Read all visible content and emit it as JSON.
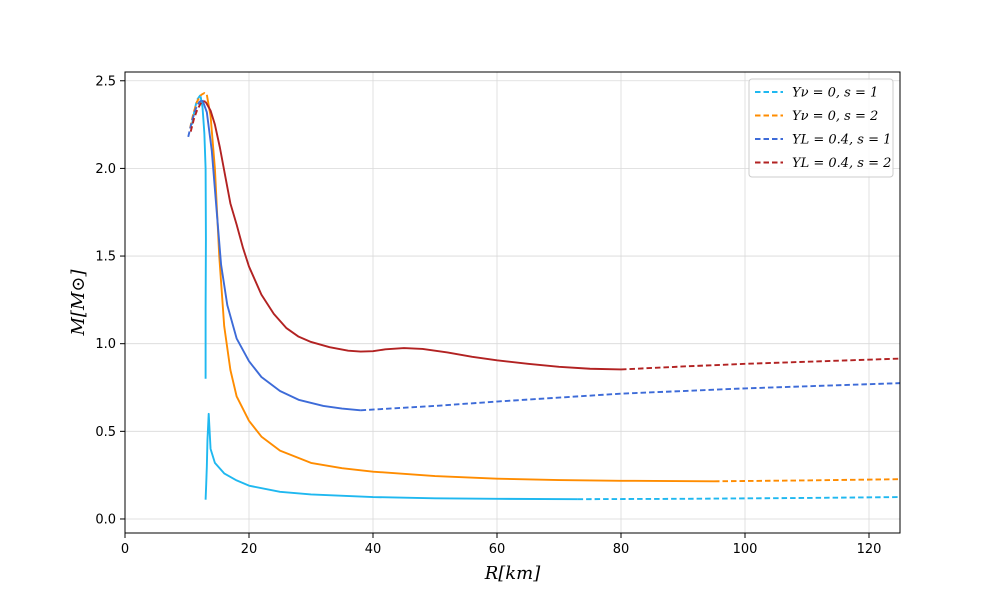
{
  "chart_data": {
    "type": "line",
    "xlabel": "R[km]",
    "ylabel": "M[M⊙]",
    "xlim": [
      0,
      125
    ],
    "ylim": [
      -0.08,
      2.55
    ],
    "xticks": [
      0,
      20,
      40,
      60,
      80,
      100,
      120
    ],
    "yticks": [
      0.0,
      0.5,
      1.0,
      1.5,
      2.0,
      2.5
    ],
    "grid": true,
    "legend_position": "top-right",
    "series": [
      {
        "name": "Yν = 0, s = 1",
        "color": "#1fb8f0",
        "solid": [
          [
            13.0,
            0.11
          ],
          [
            13.1,
            0.2
          ],
          [
            13.2,
            0.3
          ],
          [
            13.3,
            0.45
          ],
          [
            13.5,
            0.6
          ],
          [
            13.8,
            0.4
          ],
          [
            14.5,
            0.32
          ],
          [
            16,
            0.26
          ],
          [
            18,
            0.22
          ],
          [
            20,
            0.19
          ],
          [
            25,
            0.155
          ],
          [
            30,
            0.14
          ],
          [
            40,
            0.125
          ],
          [
            50,
            0.118
          ],
          [
            60,
            0.115
          ],
          [
            73,
            0.113
          ]
        ],
        "solid_upper": [
          [
            13.0,
            0.8
          ],
          [
            13.0,
            1.2
          ],
          [
            13.05,
            1.6
          ],
          [
            13.0,
            2.0
          ],
          [
            12.8,
            2.2
          ],
          [
            12.5,
            2.35
          ],
          [
            12.2,
            2.41
          ]
        ],
        "dashed": [
          [
            10.8,
            2.25
          ],
          [
            11.2,
            2.33
          ],
          [
            11.6,
            2.39
          ],
          [
            12.2,
            2.42
          ],
          [
            12.6,
            2.42
          ]
        ],
        "dashed_tail": [
          [
            73,
            0.113
          ],
          [
            90,
            0.115
          ],
          [
            110,
            0.12
          ],
          [
            125,
            0.125
          ]
        ]
      },
      {
        "name": "Yν = 0, s = 2",
        "color": "#ff8c00",
        "solid": [
          [
            13.2,
            2.42
          ],
          [
            13.8,
            2.3
          ],
          [
            14.5,
            2.0
          ],
          [
            15.2,
            1.5
          ],
          [
            16,
            1.1
          ],
          [
            17,
            0.85
          ],
          [
            18,
            0.7
          ],
          [
            20,
            0.56
          ],
          [
            22,
            0.47
          ],
          [
            25,
            0.39
          ],
          [
            30,
            0.32
          ],
          [
            35,
            0.29
          ],
          [
            40,
            0.27
          ],
          [
            50,
            0.245
          ],
          [
            60,
            0.23
          ],
          [
            70,
            0.222
          ],
          [
            80,
            0.218
          ],
          [
            95,
            0.215
          ]
        ],
        "dashed": [
          [
            10.5,
            2.23
          ],
          [
            11,
            2.31
          ],
          [
            11.6,
            2.38
          ],
          [
            12.3,
            2.42
          ],
          [
            12.8,
            2.43
          ],
          [
            13.2,
            2.42
          ]
        ],
        "dashed_tail": [
          [
            95,
            0.215
          ],
          [
            110,
            0.22
          ],
          [
            125,
            0.227
          ]
        ]
      },
      {
        "name": "YL = 0.4, s = 1",
        "color": "#3d6bd8",
        "solid": [
          [
            12.5,
            2.39
          ],
          [
            13.2,
            2.32
          ],
          [
            14,
            2.1
          ],
          [
            14.8,
            1.75
          ],
          [
            15.5,
            1.45
          ],
          [
            16.5,
            1.22
          ],
          [
            18,
            1.03
          ],
          [
            20,
            0.9
          ],
          [
            22,
            0.81
          ],
          [
            25,
            0.73
          ],
          [
            28,
            0.68
          ],
          [
            32,
            0.645
          ],
          [
            35,
            0.63
          ],
          [
            38,
            0.62
          ]
        ],
        "dashed": [
          [
            10.2,
            2.18
          ],
          [
            10.8,
            2.27
          ],
          [
            11.4,
            2.34
          ],
          [
            12.0,
            2.38
          ],
          [
            12.5,
            2.39
          ]
        ],
        "dashed_tail": [
          [
            38,
            0.62
          ],
          [
            50,
            0.645
          ],
          [
            60,
            0.67
          ],
          [
            80,
            0.715
          ],
          [
            100,
            0.745
          ],
          [
            125,
            0.775
          ]
        ]
      },
      {
        "name": "YL = 0.4, s = 2",
        "color": "#b22222",
        "solid": [
          [
            13.0,
            2.38
          ],
          [
            13.8,
            2.33
          ],
          [
            14.5,
            2.25
          ],
          [
            15.3,
            2.12
          ],
          [
            16.2,
            1.95
          ],
          [
            17,
            1.8
          ],
          [
            18,
            1.68
          ],
          [
            19,
            1.55
          ],
          [
            20,
            1.44
          ],
          [
            22,
            1.28
          ],
          [
            24,
            1.17
          ],
          [
            26,
            1.09
          ],
          [
            28,
            1.04
          ],
          [
            30,
            1.01
          ],
          [
            33,
            0.98
          ],
          [
            36,
            0.96
          ],
          [
            38,
            0.955
          ],
          [
            40,
            0.957
          ],
          [
            42,
            0.968
          ],
          [
            45,
            0.975
          ],
          [
            48,
            0.97
          ],
          [
            52,
            0.95
          ],
          [
            56,
            0.925
          ],
          [
            60,
            0.905
          ],
          [
            65,
            0.885
          ],
          [
            70,
            0.868
          ],
          [
            75,
            0.857
          ],
          [
            80,
            0.853
          ]
        ],
        "dashed": [
          [
            10.6,
            2.21
          ],
          [
            11.1,
            2.28
          ],
          [
            11.6,
            2.33
          ],
          [
            12.2,
            2.37
          ],
          [
            12.6,
            2.385
          ],
          [
            13.0,
            2.38
          ]
        ],
        "dashed_tail": [
          [
            80,
            0.853
          ],
          [
            90,
            0.87
          ],
          [
            100,
            0.885
          ],
          [
            110,
            0.897
          ],
          [
            125,
            0.915
          ]
        ]
      }
    ]
  }
}
